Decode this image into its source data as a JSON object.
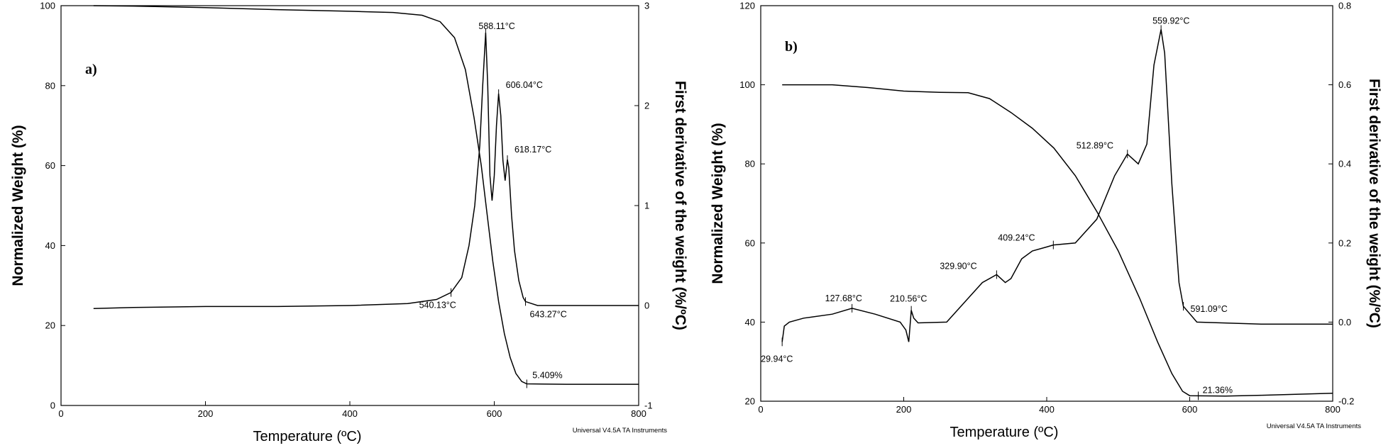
{
  "chart_data": [
    {
      "type": "line",
      "panel_label": "a)",
      "xlabel": "Temperature (ºC)",
      "ylabel_left": "Normalized Weight (%)",
      "ylabel_right": "First derivative of the weight (%/ºC)",
      "xlim": [
        0,
        800
      ],
      "ylim_left": [
        0,
        100
      ],
      "ylim_right": [
        -1,
        3
      ],
      "x_ticks": [
        "0",
        "200",
        "400",
        "600",
        "800"
      ],
      "yleft_ticks": [
        "0",
        "20",
        "40",
        "60",
        "80",
        "100"
      ],
      "yright_ticks": [
        "-1",
        "0",
        "1",
        "2",
        "3"
      ],
      "footer": "Universal V4.5A TA Instruments",
      "series": [
        {
          "axis": "left",
          "points": [
            [
              45,
              100
            ],
            [
              100,
              99.9
            ],
            [
              200,
              99.5
            ],
            [
              300,
              99.0
            ],
            [
              400,
              98.6
            ],
            [
              460,
              98.3
            ],
            [
              500,
              97.6
            ],
            [
              525,
              96.0
            ],
            [
              545,
              92.0
            ],
            [
              560,
              84.0
            ],
            [
              572,
              72.0
            ],
            [
              582,
              60.0
            ],
            [
              590,
              48.0
            ],
            [
              598,
              36.0
            ],
            [
              606,
              26.0
            ],
            [
              614,
              18.0
            ],
            [
              622,
              12.0
            ],
            [
              630,
              8.0
            ],
            [
              638,
              6.0
            ],
            [
              645,
              5.409
            ],
            [
              700,
              5.3
            ],
            [
              800,
              5.3
            ]
          ]
        },
        {
          "axis": "right",
          "points": [
            [
              45,
              -0.03
            ],
            [
              100,
              -0.02
            ],
            [
              200,
              -0.01
            ],
            [
              300,
              -0.01
            ],
            [
              400,
              0.0
            ],
            [
              480,
              0.02
            ],
            [
              520,
              0.06
            ],
            [
              540,
              0.13
            ],
            [
              555,
              0.28
            ],
            [
              565,
              0.6
            ],
            [
              573,
              1.0
            ],
            [
              580,
              1.6
            ],
            [
              584,
              2.2
            ],
            [
              588.11,
              2.73
            ],
            [
              591,
              2.2
            ],
            [
              594,
              1.3
            ],
            [
              597,
              1.05
            ],
            [
              600,
              1.3
            ],
            [
              603,
              1.8
            ],
            [
              606.04,
              2.12
            ],
            [
              609,
              1.9
            ],
            [
              612,
              1.45
            ],
            [
              615,
              1.25
            ],
            [
              618.17,
              1.46
            ],
            [
              620,
              1.38
            ],
            [
              624,
              0.9
            ],
            [
              628,
              0.55
            ],
            [
              634,
              0.25
            ],
            [
              640,
              0.08
            ],
            [
              643.27,
              0.04
            ],
            [
              660,
              0.0
            ],
            [
              800,
              0.0
            ]
          ]
        }
      ],
      "annotations": [
        {
          "text": "588.11°C",
          "x": 588.11,
          "y": 2.73,
          "axis": "right"
        },
        {
          "text": "606.04°C",
          "x": 606.04,
          "y": 2.12,
          "axis": "right"
        },
        {
          "text": "618.17°C",
          "x": 618.17,
          "y": 1.46,
          "axis": "right"
        },
        {
          "text": "540.13°C",
          "x": 540.13,
          "y": 0.13,
          "axis": "right"
        },
        {
          "text": "643.27°C",
          "x": 643.27,
          "y": 0.04,
          "axis": "right"
        },
        {
          "text": "5.409%",
          "x": 645,
          "y": 5.409,
          "axis": "left"
        }
      ]
    },
    {
      "type": "line",
      "panel_label": "b)",
      "xlabel": "Temperature (ºC)",
      "ylabel_left": "Normalized Weight (%)",
      "ylabel_right": "First derivative of the weight (%/ºC)",
      "xlim": [
        0,
        800
      ],
      "ylim_left": [
        20,
        120
      ],
      "ylim_right": [
        -0.2,
        0.8
      ],
      "x_ticks": [
        "0",
        "200",
        "400",
        "600",
        "800"
      ],
      "yleft_ticks": [
        "20",
        "40",
        "60",
        "80",
        "100",
        "120"
      ],
      "yright_ticks": [
        "-0.2",
        "0.0",
        "0.2",
        "0.4",
        "0.6",
        "0.8"
      ],
      "footer": "Universal V4.5A TA Instruments",
      "series": [
        {
          "axis": "left",
          "points": [
            [
              30,
              100
            ],
            [
              100,
              100
            ],
            [
              150,
              99.3
            ],
            [
              200,
              98.4
            ],
            [
              250,
              98.1
            ],
            [
              290,
              98.0
            ],
            [
              320,
              96.5
            ],
            [
              350,
              93.0
            ],
            [
              380,
              89.0
            ],
            [
              410,
              84.0
            ],
            [
              440,
              77.0
            ],
            [
              470,
              68.0
            ],
            [
              500,
              58.0
            ],
            [
              530,
              46.0
            ],
            [
              555,
              35.0
            ],
            [
              575,
              27.0
            ],
            [
              590,
              22.5
            ],
            [
              600,
              21.4
            ],
            [
              612,
              21.36
            ],
            [
              650,
              21.3
            ],
            [
              700,
              21.5
            ],
            [
              800,
              22.0
            ]
          ]
        },
        {
          "axis": "right",
          "points": [
            [
              29.94,
              -0.05
            ],
            [
              33,
              -0.01
            ],
            [
              40,
              0.0
            ],
            [
              60,
              0.01
            ],
            [
              100,
              0.02
            ],
            [
              127.68,
              0.035
            ],
            [
              160,
              0.02
            ],
            [
              195,
              0.0
            ],
            [
              203,
              -0.02
            ],
            [
              207,
              -0.05
            ],
            [
              210.56,
              0.03
            ],
            [
              214,
              0.01
            ],
            [
              220,
              -0.002
            ],
            [
              260,
              0.0
            ],
            [
              290,
              0.06
            ],
            [
              310,
              0.1
            ],
            [
              329.9,
              0.12
            ],
            [
              342,
              0.1
            ],
            [
              350,
              0.11
            ],
            [
              365,
              0.16
            ],
            [
              380,
              0.18
            ],
            [
              400,
              0.19
            ],
            [
              409.24,
              0.195
            ],
            [
              440,
              0.2
            ],
            [
              470,
              0.26
            ],
            [
              495,
              0.37
            ],
            [
              512.89,
              0.425
            ],
            [
              528,
              0.4
            ],
            [
              540,
              0.45
            ],
            [
              550,
              0.65
            ],
            [
              559.92,
              0.74
            ],
            [
              565,
              0.68
            ],
            [
              575,
              0.35
            ],
            [
              585,
              0.1
            ],
            [
              591.09,
              0.04
            ],
            [
              610,
              0.0
            ],
            [
              700,
              -0.005
            ],
            [
              800,
              -0.005
            ]
          ]
        }
      ],
      "annotations": [
        {
          "text": "559.92°C",
          "x": 559.92,
          "y": 0.74,
          "axis": "right"
        },
        {
          "text": "512.89°C",
          "x": 512.89,
          "y": 0.425,
          "axis": "right"
        },
        {
          "text": "409.24°C",
          "x": 409.24,
          "y": 0.195,
          "axis": "right"
        },
        {
          "text": "329.90°C",
          "x": 329.9,
          "y": 0.12,
          "axis": "right"
        },
        {
          "text": "210.56°C",
          "x": 210.56,
          "y": 0.03,
          "axis": "right"
        },
        {
          "text": "127.68°C",
          "x": 127.68,
          "y": 0.035,
          "axis": "right"
        },
        {
          "text": "591.09°C",
          "x": 591.09,
          "y": 0.04,
          "axis": "right"
        },
        {
          "text": "29.94°C",
          "x": 29.94,
          "y": -0.05,
          "axis": "right"
        },
        {
          "text": "21.36%",
          "x": 612,
          "y": 21.36,
          "axis": "left"
        }
      ]
    }
  ]
}
